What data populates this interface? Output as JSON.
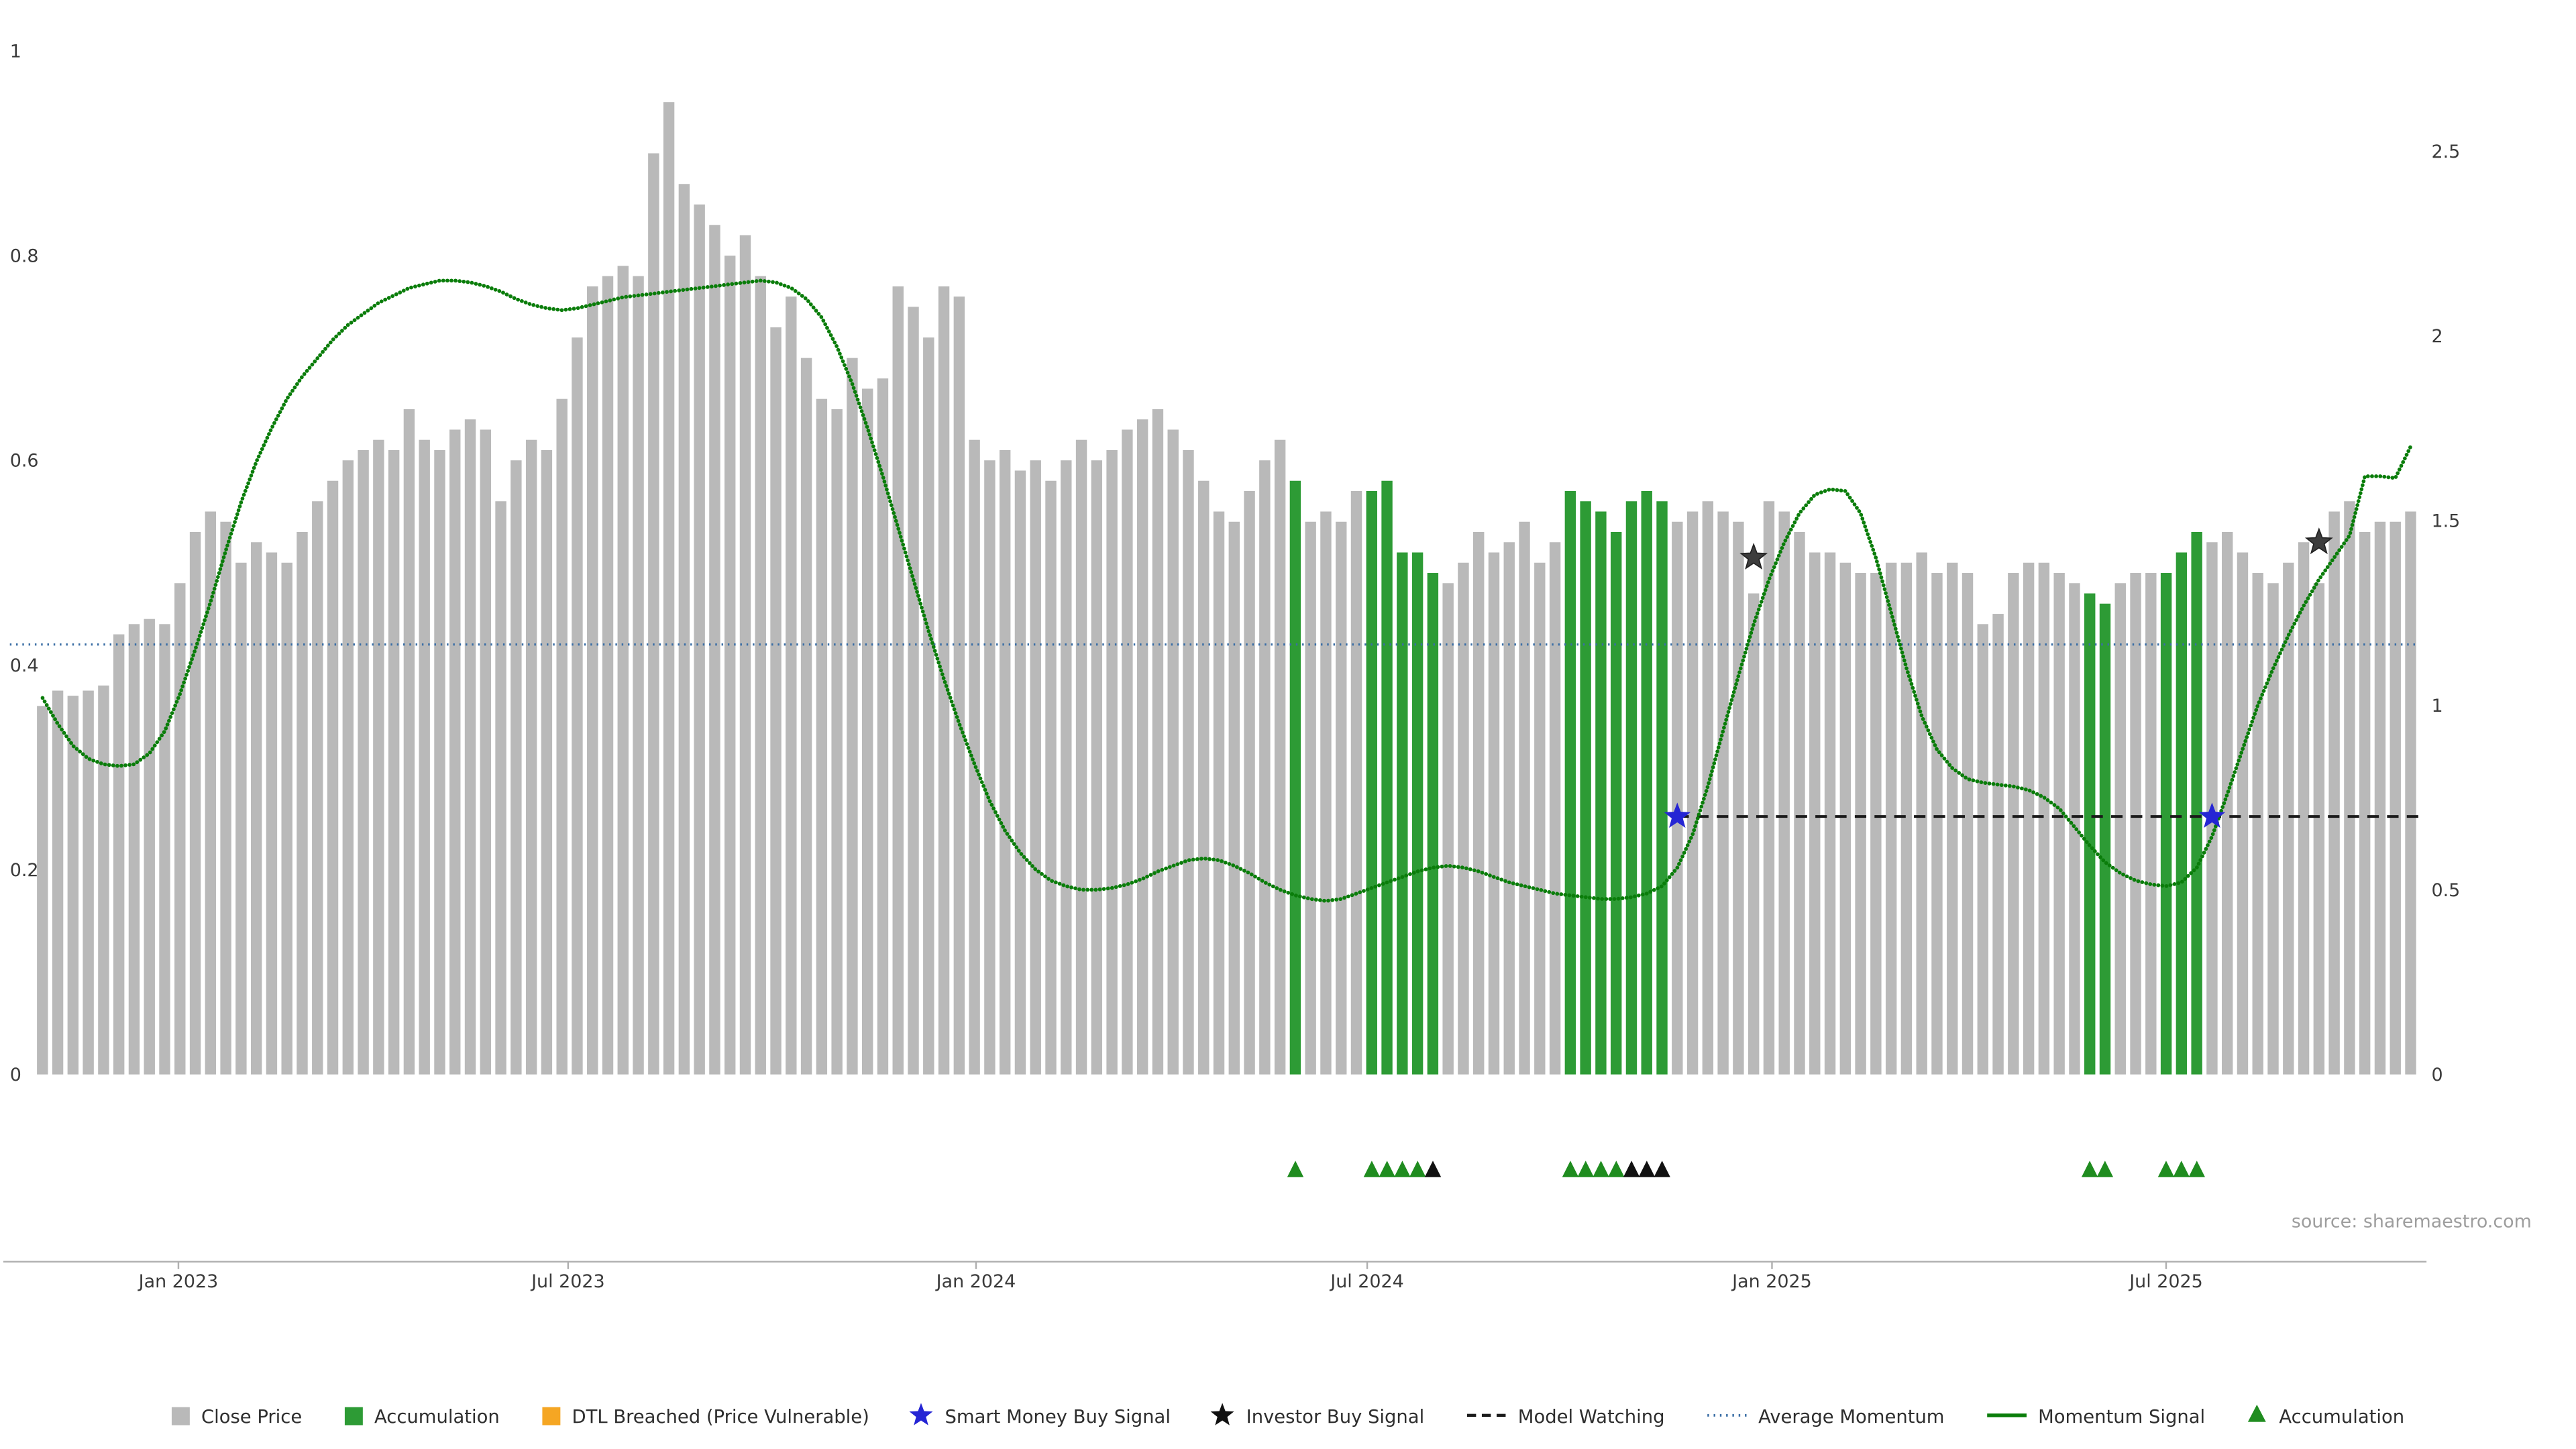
{
  "source_note": "source: sharemaestro.com",
  "colors": {
    "close_price_bar": "#b9b9b9",
    "accumulation_bar": "#2d9b35",
    "dtl_breached": "#f5a623",
    "smart_money": "#2525d4",
    "investor": "#3d3d3d",
    "model_watching": "#1a1a1a",
    "average_momentum": "#3a6ea5",
    "momentum_signal": "#0a7d0a",
    "triangle_green": "#1f8c1f",
    "triangle_black": "#111111",
    "axis_text": "#3b3b3b",
    "axis_line": "#b0b0b0",
    "source_text": "#9e9e9e"
  },
  "legend": {
    "items": [
      {
        "label": "Close Price",
        "marker": "square",
        "color": "#b9b9b9"
      },
      {
        "label": "Accumulation",
        "marker": "square",
        "color": "#2d9b35"
      },
      {
        "label": "DTL Breached (Price Vulnerable)",
        "marker": "square",
        "color": "#f5a623"
      },
      {
        "label": "Smart Money Buy Signal",
        "marker": "star",
        "color": "#2525d4"
      },
      {
        "label": "Investor Buy Signal",
        "marker": "star",
        "color": "#111111"
      },
      {
        "label": "Model Watching",
        "marker": "dashed-line",
        "color": "#1a1a1a"
      },
      {
        "label": "Average Momentum",
        "marker": "dotted-line",
        "color": "#3a6ea5"
      },
      {
        "label": "Momentum Signal",
        "marker": "line",
        "color": "#0a7d0a"
      },
      {
        "label": "Accumulation",
        "marker": "triangle",
        "color": "#1f8c1f"
      }
    ]
  },
  "chart_data": {
    "type": "bar+line",
    "title": "",
    "x_ticks": [
      {
        "label": "Jan 2023",
        "index": 8.9
      },
      {
        "label": "Jul 2023",
        "index": 34.4
      },
      {
        "label": "Jan 2024",
        "index": 61.1
      },
      {
        "label": "Jul 2024",
        "index": 86.7
      },
      {
        "label": "Jan 2025",
        "index": 113.2
      },
      {
        "label": "Jul 2025",
        "index": 139.0
      }
    ],
    "left_axis": {
      "labels": [
        "0",
        "0.2",
        "0.4",
        "0.6",
        "0.8",
        "1"
      ],
      "values": [
        0,
        0.2,
        0.4,
        0.6,
        0.8,
        1
      ],
      "range": [
        0,
        1
      ]
    },
    "right_axis": {
      "labels": [
        "0",
        "0.5",
        "1",
        "1.5",
        "2",
        "2.5"
      ],
      "values": [
        0,
        0.5,
        1,
        1.5,
        2,
        2.5
      ],
      "range": [
        0,
        2.772
      ]
    },
    "bars": {
      "name": "Close Price (weekly)",
      "values": [
        0.36,
        0.375,
        0.37,
        0.375,
        0.38,
        0.43,
        0.44,
        0.445,
        0.44,
        0.48,
        0.53,
        0.55,
        0.54,
        0.5,
        0.52,
        0.51,
        0.5,
        0.53,
        0.56,
        0.58,
        0.6,
        0.61,
        0.62,
        0.61,
        0.65,
        0.62,
        0.61,
        0.63,
        0.64,
        0.63,
        0.56,
        0.6,
        0.62,
        0.61,
        0.66,
        0.72,
        0.77,
        0.78,
        0.79,
        0.78,
        0.9,
        0.95,
        0.87,
        0.85,
        0.83,
        0.8,
        0.82,
        0.78,
        0.73,
        0.76,
        0.7,
        0.66,
        0.65,
        0.7,
        0.67,
        0.68,
        0.77,
        0.75,
        0.72,
        0.77,
        0.76,
        0.62,
        0.6,
        0.61,
        0.59,
        0.6,
        0.58,
        0.6,
        0.62,
        0.6,
        0.61,
        0.63,
        0.64,
        0.65,
        0.63,
        0.61,
        0.58,
        0.55,
        0.54,
        0.57,
        0.6,
        0.62,
        0.58,
        0.54,
        0.55,
        0.54,
        0.57,
        0.57,
        0.58,
        0.51,
        0.51,
        0.49,
        0.48,
        0.5,
        0.53,
        0.51,
        0.52,
        0.54,
        0.5,
        0.52,
        0.57,
        0.56,
        0.55,
        0.53,
        0.56,
        0.57,
        0.56,
        0.54,
        0.55,
        0.56,
        0.55,
        0.54,
        0.47,
        0.56,
        0.55,
        0.53,
        0.51,
        0.51,
        0.5,
        0.49,
        0.49,
        0.5,
        0.5,
        0.51,
        0.49,
        0.5,
        0.49,
        0.44,
        0.45,
        0.49,
        0.5,
        0.5,
        0.49,
        0.48,
        0.47,
        0.46,
        0.48,
        0.49,
        0.49,
        0.49,
        0.51,
        0.53,
        0.52,
        0.53,
        0.51,
        0.49,
        0.48,
        0.5,
        0.52,
        0.48,
        0.55,
        0.56,
        0.53,
        0.54,
        0.54,
        0.55
      ],
      "accumulation_indices": [
        82,
        87,
        88,
        89,
        90,
        91,
        100,
        101,
        102,
        103,
        104,
        105,
        106,
        134,
        135,
        139,
        140,
        141
      ]
    },
    "momentum_signal": {
      "name": "Momentum Signal",
      "axis": "right",
      "values": [
        1.02,
        0.95,
        0.89,
        0.855,
        0.84,
        0.835,
        0.84,
        0.87,
        0.93,
        1.03,
        1.15,
        1.28,
        1.42,
        1.55,
        1.66,
        1.75,
        1.83,
        1.89,
        1.94,
        1.99,
        2.03,
        2.06,
        2.09,
        2.11,
        2.13,
        2.14,
        2.15,
        2.15,
        2.145,
        2.135,
        2.12,
        2.1,
        2.085,
        2.075,
        2.07,
        2.075,
        2.085,
        2.095,
        2.105,
        2.11,
        2.115,
        2.12,
        2.125,
        2.13,
        2.135,
        2.14,
        2.145,
        2.15,
        2.145,
        2.13,
        2.1,
        2.05,
        1.97,
        1.87,
        1.75,
        1.62,
        1.48,
        1.34,
        1.2,
        1.07,
        0.95,
        0.84,
        0.74,
        0.66,
        0.6,
        0.555,
        0.525,
        0.51,
        0.5,
        0.5,
        0.505,
        0.515,
        0.53,
        0.55,
        0.565,
        0.58,
        0.585,
        0.58,
        0.565,
        0.545,
        0.52,
        0.5,
        0.485,
        0.475,
        0.47,
        0.475,
        0.49,
        0.505,
        0.52,
        0.535,
        0.55,
        0.56,
        0.565,
        0.56,
        0.55,
        0.535,
        0.52,
        0.51,
        0.5,
        0.49,
        0.485,
        0.48,
        0.475,
        0.475,
        0.48,
        0.49,
        0.51,
        0.56,
        0.65,
        0.78,
        0.93,
        1.08,
        1.22,
        1.34,
        1.44,
        1.52,
        1.57,
        1.585,
        1.58,
        1.52,
        1.4,
        1.25,
        1.1,
        0.97,
        0.88,
        0.83,
        0.8,
        0.79,
        0.785,
        0.78,
        0.77,
        0.75,
        0.72,
        0.67,
        0.62,
        0.575,
        0.545,
        0.525,
        0.515,
        0.51,
        0.52,
        0.56,
        0.645,
        0.76,
        0.88,
        1.0,
        1.1,
        1.19,
        1.27,
        1.34,
        1.4,
        1.46,
        1.62,
        1.62,
        1.615,
        1.7
      ]
    },
    "average_momentum": {
      "name": "Average Momentum",
      "axis": "left",
      "value": 0.42
    },
    "model_watching": {
      "name": "Model Watching",
      "axis": "left",
      "value": 0.252,
      "start_index": 107,
      "end_index": 155.8
    },
    "smart_money_buy_signals": [
      {
        "index": 107,
        "value": 0.252
      },
      {
        "index": 142,
        "value": 0.252
      }
    ],
    "investor_buy_signals": [
      {
        "index": 112,
        "value": 0.505
      },
      {
        "index": 149,
        "value": 0.52
      }
    ],
    "accumulation_markers": {
      "green": [
        82,
        87,
        88,
        89,
        90,
        100,
        101,
        102,
        103,
        134,
        135,
        139,
        140,
        141
      ],
      "black": [
        91,
        104,
        105,
        106
      ]
    }
  }
}
